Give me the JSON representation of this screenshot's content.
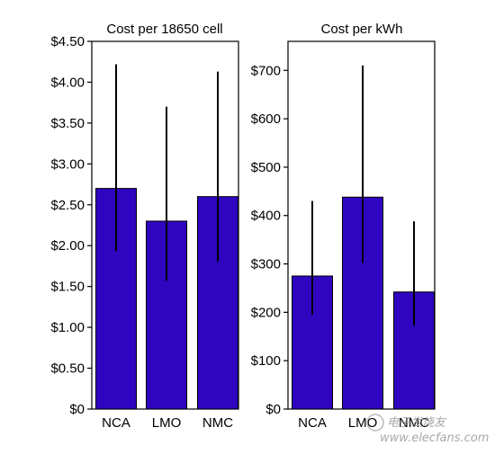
{
  "chart_data": [
    {
      "type": "bar",
      "title": "Cost per 18650 cell",
      "categories": [
        "NCA",
        "LMO",
        "NMC"
      ],
      "values": [
        2.7,
        2.3,
        2.6
      ],
      "error_low": [
        1.93,
        1.57,
        1.8
      ],
      "error_high": [
        4.22,
        3.7,
        4.13
      ],
      "ylim": [
        0,
        4.5
      ],
      "yticks": [
        0,
        0.5,
        1.0,
        1.5,
        2.0,
        2.5,
        3.0,
        3.5,
        4.0,
        4.5
      ],
      "ytick_labels": [
        "$0",
        "$0.50",
        "$1.00",
        "$1.50",
        "$2.00",
        "$2.50",
        "$3.00",
        "$3.50",
        "$4.00",
        "$4.50"
      ],
      "bar_color": "#2f05bf",
      "grid": false
    },
    {
      "type": "bar",
      "title": "Cost per kWh",
      "categories": [
        "NCA",
        "LMO",
        "NMC"
      ],
      "values": [
        275,
        438,
        242
      ],
      "error_low": [
        195,
        302,
        172
      ],
      "error_high": [
        430,
        710,
        388
      ],
      "ylim": [
        0,
        760
      ],
      "yticks": [
        0,
        100,
        200,
        300,
        400,
        500,
        600,
        700
      ],
      "ytick_labels": [
        "$0",
        "$100",
        "$200",
        "$300",
        "$400",
        "$500",
        "$600",
        "$700"
      ],
      "bar_color": "#2f05bf",
      "grid": false
    }
  ],
  "watermark": {
    "text": "www.elecfans.com",
    "logo_text": "电子发烧友"
  }
}
